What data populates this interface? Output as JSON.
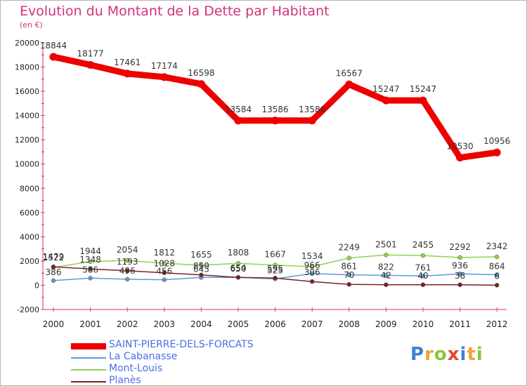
{
  "title": "Evolution du Montant de la Dette par Habitant",
  "unit": "(en €)",
  "brand": {
    "letters": [
      {
        "ch": "P",
        "color": "#3b7fd9"
      },
      {
        "ch": "r",
        "color": "#f2a23a"
      },
      {
        "ch": "o",
        "color": "#8cc43f"
      },
      {
        "ch": "x",
        "color": "#e0482c"
      },
      {
        "ch": "i",
        "color": "#3b7fd9"
      },
      {
        "ch": "t",
        "color": "#f2a23a"
      },
      {
        "ch": "i",
        "color": "#8cc43f"
      }
    ]
  },
  "chart_data": {
    "type": "line",
    "title": "Evolution du Montant de la Dette par Habitant",
    "subtitle": "(en €)",
    "x": [
      "2000",
      "2001",
      "2002",
      "2003",
      "2004",
      "2005",
      "2006",
      "2007",
      "2008",
      "2009",
      "2010",
      "2011",
      "2012"
    ],
    "ylim": [
      -2000,
      20000
    ],
    "yticks": [
      "-2000",
      "0",
      "2000",
      "4000",
      "6000",
      "8000",
      "10000",
      "12000",
      "14000",
      "16000",
      "18000",
      "20000"
    ],
    "grid": false,
    "legend_position": "bottom",
    "series": [
      {
        "name": "SAINT-PIERRE-DELS-FORCATS",
        "color": "#ee0000",
        "values": [
          18844,
          18177,
          17461,
          17174,
          16598,
          13584,
          13586,
          13586,
          16567,
          15247,
          15247,
          10530,
          10956
        ],
        "labels": [
          "18844",
          "18177",
          "17461",
          "17174",
          "16598",
          "13584",
          "13586",
          "13586",
          "16567",
          "15247",
          "15247",
          "10530",
          "10956"
        ]
      },
      {
        "name": "La Cabanasse",
        "color": "#5b9bd5",
        "values": [
          386,
          586,
          496,
          456,
          643,
          650,
          525,
          966,
          861,
          822,
          761,
          936,
          864
        ],
        "labels": [
          "386",
          "586",
          "496",
          "456",
          "643",
          "650",
          "525",
          "966",
          "861",
          "822",
          "761",
          "936",
          "864"
        ]
      },
      {
        "name": "Mont-Louis",
        "color": "#92d050",
        "values": [
          1479,
          1944,
          2054,
          1812,
          1655,
          1808,
          1667,
          1534,
          2249,
          2501,
          2455,
          2292,
          2342
        ],
        "labels": [
          "1479",
          "1944",
          "2054",
          "1812",
          "1655",
          "1808",
          "1667",
          "1534",
          "2249",
          "2501",
          "2455",
          "2292",
          "2342"
        ]
      },
      {
        "name": "Planès",
        "color": "#7b1f2a",
        "values": [
          1522,
          1348,
          1193,
          1028,
          850,
          654,
          595,
          306,
          70,
          42,
          40,
          38,
          6
        ],
        "labels": [
          "1522",
          "1348",
          "1193",
          "1028",
          "850",
          "654",
          "595",
          "306",
          "70",
          "42",
          "40",
          "38",
          "6"
        ]
      }
    ]
  }
}
